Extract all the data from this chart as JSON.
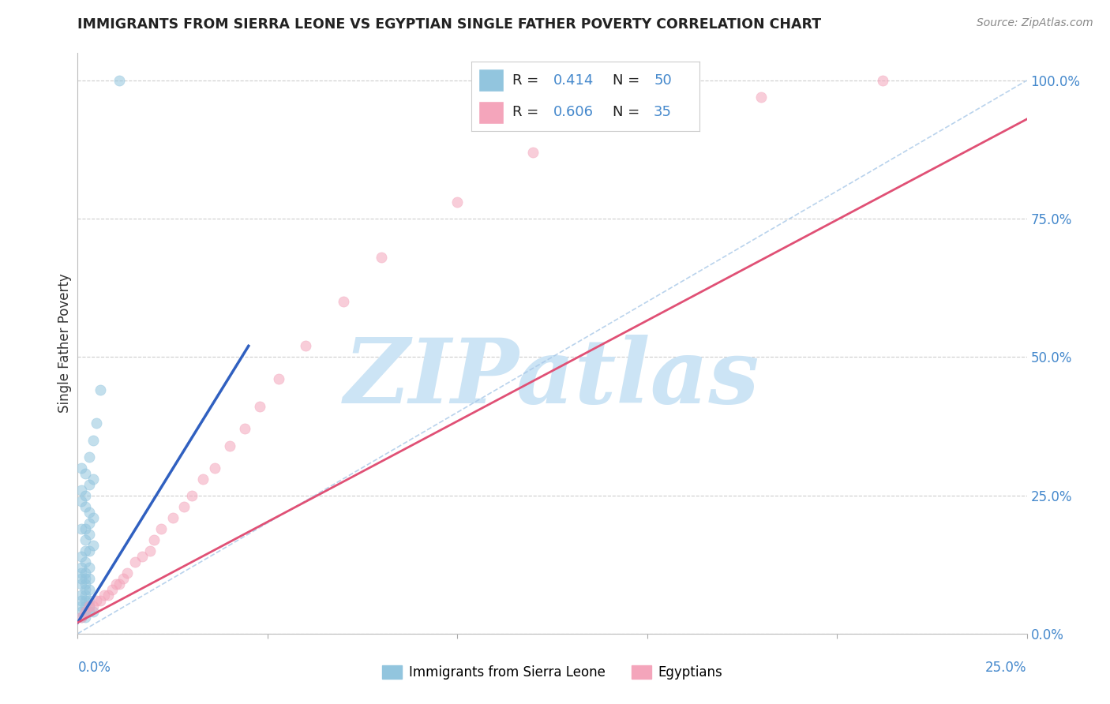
{
  "title": "IMMIGRANTS FROM SIERRA LEONE VS EGYPTIAN SINGLE FATHER POVERTY CORRELATION CHART",
  "source": "Source: ZipAtlas.com",
  "ylabel": "Single Father Poverty",
  "legend_blue_label": "Immigrants from Sierra Leone",
  "legend_pink_label": "Egyptians",
  "blue_color": "#92c5de",
  "pink_color": "#f4a5bb",
  "trend_blue_color": "#3060c0",
  "trend_pink_color": "#e05075",
  "diag_color": "#a8c8e8",
  "watermark": "ZIPatlas",
  "watermark_color": "#cce4f5",
  "blue_r": "0.414",
  "blue_n": "50",
  "pink_r": "0.606",
  "pink_n": "35",
  "xlim": [
    0.0,
    0.25
  ],
  "ylim": [
    0.0,
    1.05
  ],
  "yticks": [
    0.0,
    0.25,
    0.5,
    0.75,
    1.0
  ],
  "ytick_labels": [
    "0.0%",
    "25.0%",
    "50.0%",
    "75.0%",
    "100.0%"
  ],
  "xticks": [
    0.0,
    0.05,
    0.1,
    0.15,
    0.2,
    0.25
  ],
  "blue_scatter_x": [
    0.001,
    0.002,
    0.001,
    0.003,
    0.002,
    0.004,
    0.001,
    0.002,
    0.003,
    0.002,
    0.001,
    0.003,
    0.002,
    0.001,
    0.002,
    0.003,
    0.001,
    0.002,
    0.001,
    0.002,
    0.003,
    0.001,
    0.002,
    0.001,
    0.003,
    0.002,
    0.001,
    0.002,
    0.003,
    0.004,
    0.002,
    0.003,
    0.001,
    0.002,
    0.003,
    0.004,
    0.003,
    0.002,
    0.001,
    0.002,
    0.001,
    0.003,
    0.004,
    0.002,
    0.001,
    0.003,
    0.004,
    0.005,
    0.006,
    0.011
  ],
  "blue_scatter_y": [
    0.03,
    0.03,
    0.04,
    0.04,
    0.04,
    0.04,
    0.05,
    0.05,
    0.05,
    0.06,
    0.06,
    0.06,
    0.07,
    0.07,
    0.08,
    0.08,
    0.09,
    0.09,
    0.1,
    0.1,
    0.1,
    0.11,
    0.11,
    0.12,
    0.12,
    0.13,
    0.14,
    0.15,
    0.15,
    0.16,
    0.17,
    0.18,
    0.19,
    0.19,
    0.2,
    0.21,
    0.22,
    0.23,
    0.24,
    0.25,
    0.26,
    0.27,
    0.28,
    0.29,
    0.3,
    0.32,
    0.35,
    0.38,
    0.44,
    1.0
  ],
  "pink_scatter_x": [
    0.001,
    0.002,
    0.003,
    0.004,
    0.005,
    0.006,
    0.007,
    0.008,
    0.009,
    0.01,
    0.011,
    0.012,
    0.013,
    0.015,
    0.017,
    0.019,
    0.02,
    0.022,
    0.025,
    0.028,
    0.03,
    0.033,
    0.036,
    0.04,
    0.044,
    0.048,
    0.053,
    0.06,
    0.07,
    0.08,
    0.1,
    0.12,
    0.15,
    0.18,
    0.212
  ],
  "pink_scatter_y": [
    0.03,
    0.04,
    0.05,
    0.05,
    0.06,
    0.06,
    0.07,
    0.07,
    0.08,
    0.09,
    0.09,
    0.1,
    0.11,
    0.13,
    0.14,
    0.15,
    0.17,
    0.19,
    0.21,
    0.23,
    0.25,
    0.28,
    0.3,
    0.34,
    0.37,
    0.41,
    0.46,
    0.52,
    0.6,
    0.68,
    0.78,
    0.87,
    0.93,
    0.97,
    1.0
  ],
  "blue_trend_x": [
    0.0,
    0.045
  ],
  "blue_trend_y": [
    0.02,
    0.52
  ],
  "pink_trend_x": [
    0.0,
    0.25
  ],
  "pink_trend_y": [
    0.02,
    0.93
  ],
  "diag_trend_x": [
    0.0,
    0.25
  ],
  "diag_trend_y": [
    0.0,
    1.0
  ]
}
